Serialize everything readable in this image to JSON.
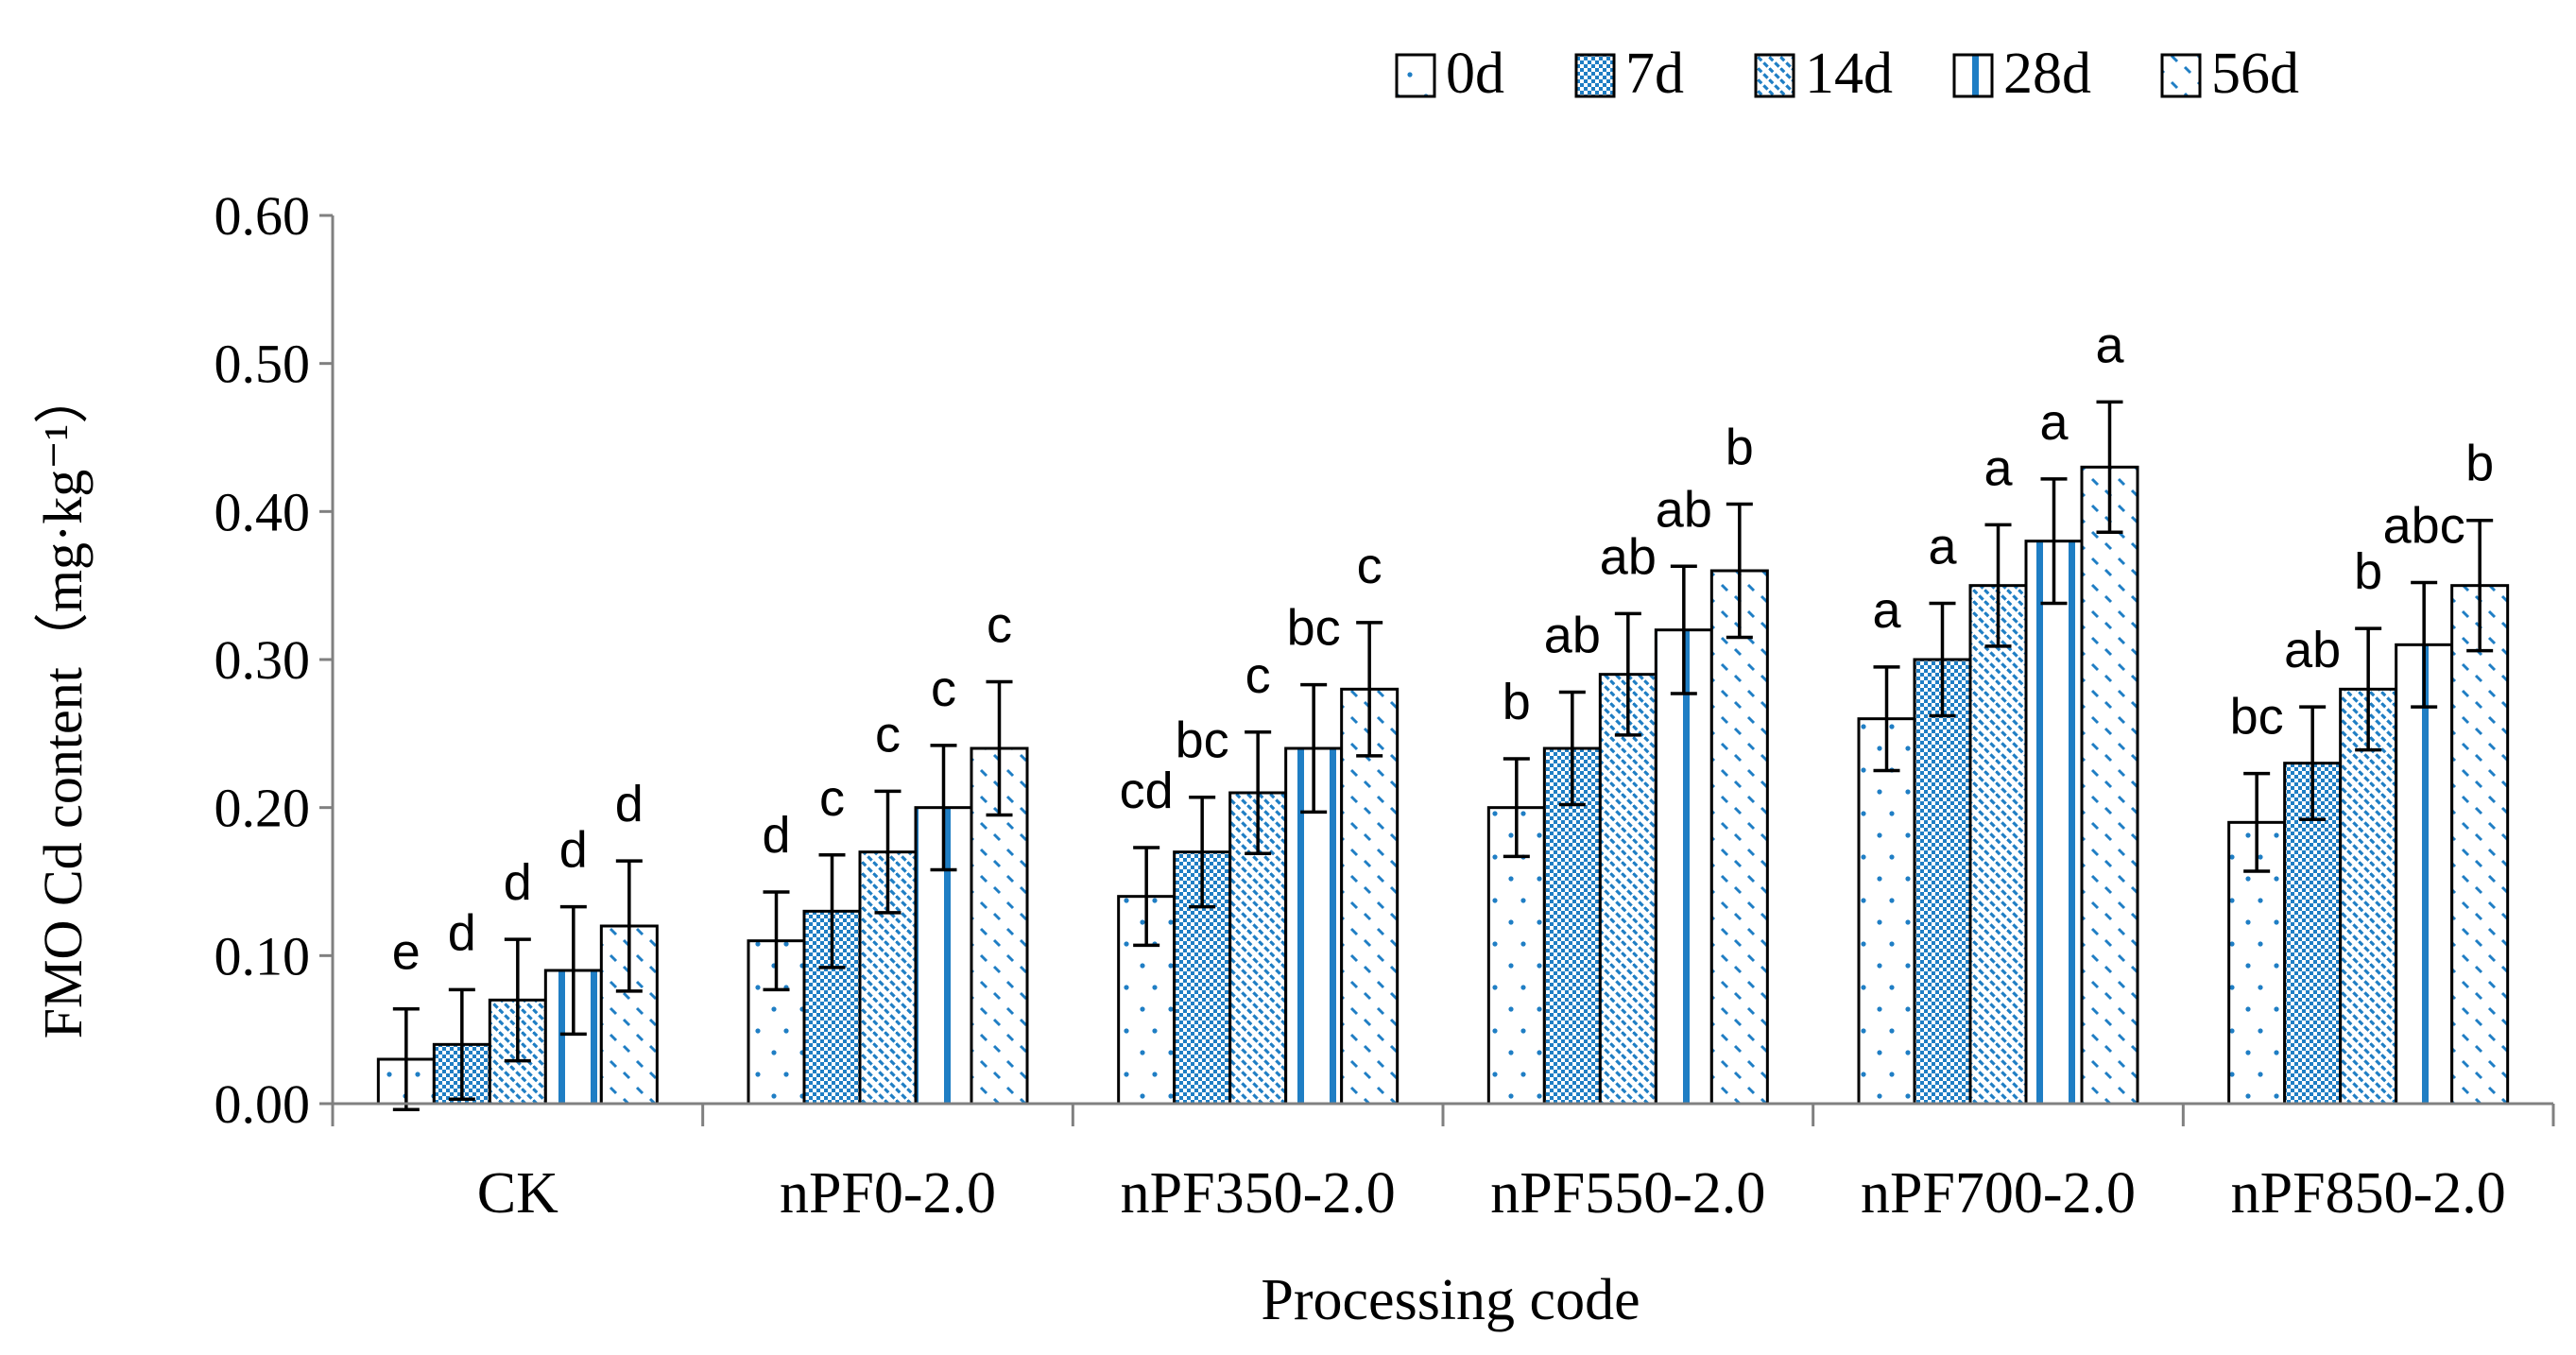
{
  "chart_data": {
    "type": "bar",
    "title": "",
    "xlabel": "Processing code",
    "ylabel": "FMO Cd content（mg·kg⁻¹）",
    "ylim": [
      0,
      0.6
    ],
    "yticks": [
      "0.00",
      "0.10",
      "0.20",
      "0.30",
      "0.40",
      "0.50",
      "0.60"
    ],
    "ytick_values": [
      0,
      0.1,
      0.2,
      0.3,
      0.4,
      0.5,
      0.6
    ],
    "categories": [
      "CK",
      "nPF0-2.0",
      "nPF350-2.0",
      "nPF550-2.0",
      "nPF700-2.0",
      "nPF850-2.0"
    ],
    "legend_position": "top-right",
    "series": [
      {
        "name": "0d",
        "pattern": "sparse-dots",
        "values": [
          0.03,
          0.11,
          0.14,
          0.2,
          0.26,
          0.19
        ],
        "errors": [
          0.034,
          0.033,
          0.033,
          0.033,
          0.035,
          0.033
        ],
        "letters": [
          "e",
          "d",
          "cd",
          "b",
          "a",
          "bc"
        ]
      },
      {
        "name": "7d",
        "pattern": "checker",
        "values": [
          0.04,
          0.13,
          0.17,
          0.24,
          0.3,
          0.23
        ],
        "errors": [
          0.037,
          0.038,
          0.037,
          0.038,
          0.038,
          0.038
        ],
        "letters": [
          "d",
          "c",
          "bc",
          "ab",
          "a",
          "ab"
        ]
      },
      {
        "name": "14d",
        "pattern": "diagonal-dashes",
        "values": [
          0.07,
          0.17,
          0.21,
          0.29,
          0.35,
          0.28
        ],
        "errors": [
          0.041,
          0.041,
          0.041,
          0.041,
          0.041,
          0.041
        ],
        "letters": [
          "d",
          "c",
          "c",
          "ab",
          "a",
          "b"
        ]
      },
      {
        "name": "28d",
        "pattern": "vertical-stripes",
        "values": [
          0.09,
          0.2,
          0.24,
          0.32,
          0.38,
          0.31
        ],
        "errors": [
          0.043,
          0.042,
          0.043,
          0.043,
          0.042,
          0.042
        ],
        "letters": [
          "d",
          "c",
          "bc",
          "ab",
          "a",
          "abc"
        ]
      },
      {
        "name": "56d",
        "pattern": "scattered-dashes",
        "values": [
          0.12,
          0.24,
          0.28,
          0.36,
          0.43,
          0.35
        ],
        "errors": [
          0.044,
          0.045,
          0.045,
          0.045,
          0.044,
          0.044
        ],
        "letters": [
          "d",
          "c",
          "c",
          "b",
          "a",
          "b"
        ]
      }
    ]
  },
  "colors": {
    "bar_outline": "#000000",
    "pattern": "#1f7ec4",
    "axis": "#808080",
    "text": "#000000",
    "background": "#ffffff"
  }
}
